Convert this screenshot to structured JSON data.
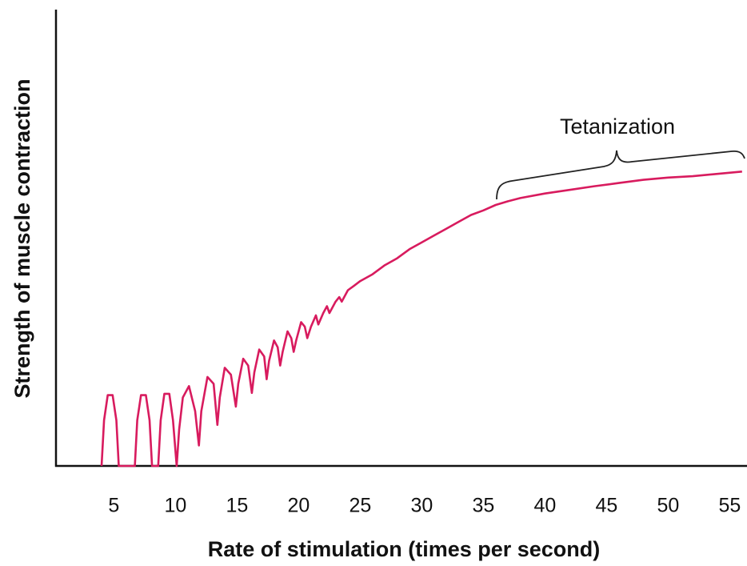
{
  "chart_data": {
    "type": "line",
    "xlabel": "Rate of stimulation (times per second)",
    "ylabel": "Strength of muscle contraction",
    "annotation": "Tetanization",
    "xlim": [
      0.3,
      56.4
    ],
    "ylim": [
      0,
      100
    ],
    "xticks": [
      5,
      10,
      15,
      20,
      25,
      30,
      35,
      40,
      45,
      50,
      55
    ],
    "x": [
      4.0,
      4.2,
      4.5,
      4.9,
      5.2,
      5.4,
      6.7,
      6.9,
      7.2,
      7.6,
      7.9,
      8.1,
      8.6,
      8.8,
      9.1,
      9.5,
      9.8,
      10.1,
      10.3,
      10.6,
      11.1,
      11.6,
      11.9,
      12.1,
      12.6,
      13.1,
      13.4,
      13.6,
      14.0,
      14.5,
      14.9,
      15.1,
      15.5,
      15.9,
      16.2,
      16.4,
      16.8,
      17.2,
      17.4,
      17.6,
      18.0,
      18.3,
      18.5,
      18.7,
      19.1,
      19.4,
      19.6,
      19.8,
      20.2,
      20.5,
      20.7,
      21.0,
      21.4,
      21.6,
      22.0,
      22.3,
      22.5,
      23.0,
      23.3,
      23.5,
      24,
      24.5,
      25,
      26,
      27,
      28,
      29,
      30,
      31,
      32,
      33,
      34,
      35,
      36,
      37,
      38,
      40,
      42,
      44,
      46,
      48,
      50,
      52,
      54,
      56
    ],
    "series": [
      {
        "color": "#d81b5e",
        "values": [
          0,
          10,
          15.5,
          15.5,
          10,
          0,
          0,
          10,
          15.5,
          15.5,
          10,
          0,
          0,
          10,
          15.8,
          15.8,
          10,
          0,
          8,
          15,
          17.5,
          12,
          4.5,
          12,
          19.5,
          18,
          9,
          15,
          21.5,
          20,
          13,
          18,
          23.5,
          22,
          16,
          20.5,
          25.5,
          24,
          19,
          23,
          27.5,
          26,
          22,
          25,
          29.5,
          28,
          25,
          27.5,
          31.5,
          30.5,
          28,
          30.5,
          33,
          31,
          33.5,
          35,
          33.5,
          36,
          37,
          36,
          38.5,
          39.5,
          40.5,
          42,
          44,
          45.5,
          47.5,
          49,
          50.5,
          52,
          53.5,
          55,
          56,
          57.2,
          58,
          58.7,
          59.7,
          60.5,
          61.3,
          62,
          62.7,
          63.2,
          63.5,
          64,
          64.5
        ]
      }
    ]
  }
}
